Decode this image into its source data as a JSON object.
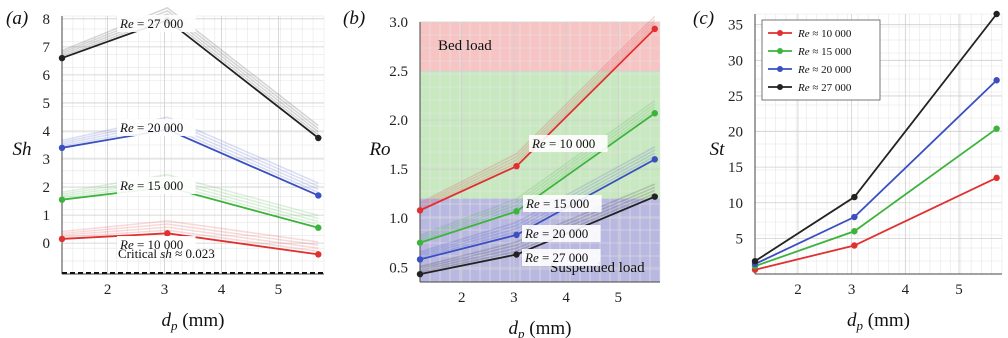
{
  "chart_data": [
    {
      "type": "line",
      "panel_label": "(a)",
      "ylabel": "Sh",
      "xlabel": "d_p (mm)",
      "x_ticks": [
        2,
        3,
        4,
        5
      ],
      "y_ticks": [
        0,
        1,
        2,
        3,
        4,
        5,
        6,
        7,
        8
      ],
      "xlim": [
        1.2,
        5.8
      ],
      "ylim": [
        -1.1,
        8.1
      ],
      "grid": true,
      "x": [
        1.2,
        3.05,
        5.7
      ],
      "series": [
        {
          "label": "Re = 10 000",
          "color": "#e03030",
          "values": [
            0.15,
            0.35,
            -0.4
          ]
        },
        {
          "label": "Re = 15 000",
          "color": "#3cb43c",
          "values": [
            1.55,
            2.0,
            0.55
          ]
        },
        {
          "label": "Re = 20 000",
          "color": "#3a4fc0",
          "values": [
            3.4,
            4.05,
            1.7
          ]
        },
        {
          "label": "Re = 27 000",
          "color": "#222222",
          "values": [
            6.6,
            7.95,
            3.75
          ]
        }
      ],
      "annotation": "Critical sh ≈ 0.023"
    },
    {
      "type": "line",
      "panel_label": "(b)",
      "ylabel": "Ro",
      "xlabel": "d_p (mm)",
      "x_ticks": [
        2,
        3,
        4,
        5
      ],
      "y_ticks": [
        "0.5",
        "1.0",
        "1.5",
        "2.0",
        "2.5",
        "3.0"
      ],
      "xlim": [
        1.2,
        5.8
      ],
      "ylim": [
        0.35,
        3.0
      ],
      "grid": true,
      "regions": [
        {
          "label": "Bed load",
          "from": 2.5,
          "to": 3.0,
          "color": "#f7c4c4"
        },
        {
          "label": "",
          "from": 1.2,
          "to": 2.5,
          "color": "#c8e8c0"
        },
        {
          "label": "Suspended load",
          "from": 0.35,
          "to": 1.2,
          "color": "#b8b8e0"
        }
      ],
      "x": [
        1.2,
        3.05,
        5.7
      ],
      "series": [
        {
          "label": "Re = 10 000",
          "color": "#e03030",
          "values": [
            1.08,
            1.53,
            2.93
          ]
        },
        {
          "label": "Re = 15 000",
          "color": "#3cb43c",
          "values": [
            0.75,
            1.07,
            2.07
          ]
        },
        {
          "label": "Re = 20 000",
          "color": "#3a4fc0",
          "values": [
            0.58,
            0.83,
            1.6
          ]
        },
        {
          "label": "Re = 27 000",
          "color": "#222222",
          "values": [
            0.43,
            0.63,
            1.22
          ]
        }
      ]
    },
    {
      "type": "line",
      "panel_label": "(c)",
      "ylabel": "St",
      "xlabel": "d_p (mm)",
      "x_ticks": [
        2,
        3,
        4,
        5
      ],
      "y_ticks": [
        5,
        10,
        15,
        20,
        25,
        30,
        35
      ],
      "xlim": [
        1.2,
        5.8
      ],
      "ylim": [
        0,
        36.5
      ],
      "grid": true,
      "legend_position": "top-left",
      "x": [
        1.2,
        3.05,
        5.7
      ],
      "series": [
        {
          "label": "Re ≈ 10 000",
          "color": "#e03030",
          "values": [
            0.6,
            4.0,
            13.5
          ]
        },
        {
          "label": "Re ≈ 15 000",
          "color": "#3cb43c",
          "values": [
            1.1,
            6.0,
            20.4
          ]
        },
        {
          "label": "Re ≈ 20 000",
          "color": "#3a4fc0",
          "values": [
            1.4,
            8.0,
            27.2
          ]
        },
        {
          "label": "Re ≈ 27 000",
          "color": "#222222",
          "values": [
            1.8,
            10.8,
            36.5
          ]
        }
      ]
    }
  ]
}
